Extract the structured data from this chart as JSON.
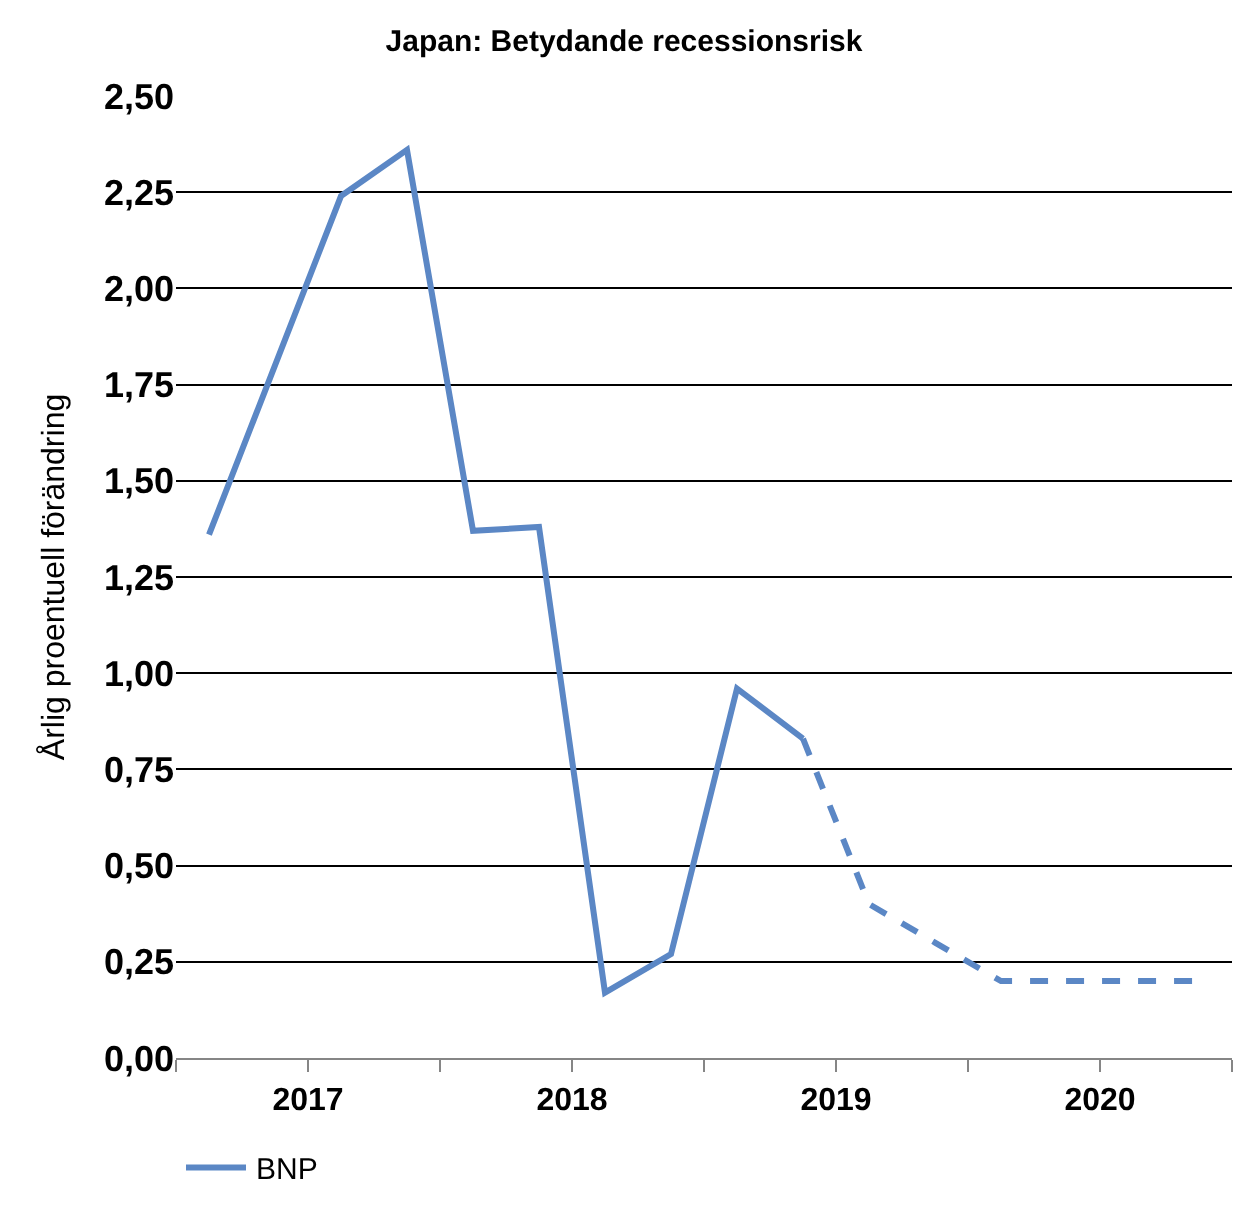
{
  "chart_data": {
    "type": "line",
    "title": "Japan: Betydande recessionsrisk",
    "ylabel": "Årlig proentuell förändring",
    "xlim": [
      2017,
      2021
    ],
    "xticks": [
      {
        "value": 2017,
        "label": null
      },
      {
        "value": 2017.5,
        "label": "2017"
      },
      {
        "value": 2018,
        "label": null
      },
      {
        "value": 2018.5,
        "label": "2018"
      },
      {
        "value": 2019,
        "label": null
      },
      {
        "value": 2019.5,
        "label": "2019"
      },
      {
        "value": 2020,
        "label": null
      },
      {
        "value": 2020.5,
        "label": "2020"
      },
      {
        "value": 2021,
        "label": null
      }
    ],
    "ylim": [
      0,
      2.5
    ],
    "yticks": [
      {
        "value": 0,
        "label": "0,00"
      },
      {
        "value": 0.25,
        "label": "0,25"
      },
      {
        "value": 0.5,
        "label": "0,50"
      },
      {
        "value": 0.75,
        "label": "0,75"
      },
      {
        "value": 1,
        "label": "1,00"
      },
      {
        "value": 1.25,
        "label": "1,25"
      },
      {
        "value": 1.5,
        "label": "1,50"
      },
      {
        "value": 1.75,
        "label": "1,75"
      },
      {
        "value": 2,
        "label": "2,00"
      },
      {
        "value": 2.25,
        "label": "2,25"
      },
      {
        "value": 2.5,
        "label": "2,50"
      }
    ],
    "grid": "y",
    "legend": "bottom left",
    "marker": "none",
    "series": [
      {
        "name": "BNP",
        "color": "#5b87c5",
        "line_style": "solid",
        "x": [
          2017.125,
          2017.375,
          2017.625,
          2017.875,
          2018.125,
          2018.375,
          2018.625,
          2018.875,
          2019.125,
          2019.375
        ],
        "values": [
          1.36,
          1.8,
          2.24,
          2.36,
          1.37,
          1.38,
          0.17,
          0.27,
          0.96,
          0.83
        ]
      },
      {
        "color": "#5b87c5",
        "line_style": "dashed",
        "x": [
          2019.375,
          2019.625,
          2019.875,
          2020.125,
          2020.375,
          2020.625,
          2020.875
        ],
        "values": [
          0.83,
          0.4,
          0.3,
          0.2,
          0.2,
          0.2,
          0.2
        ]
      }
    ]
  }
}
